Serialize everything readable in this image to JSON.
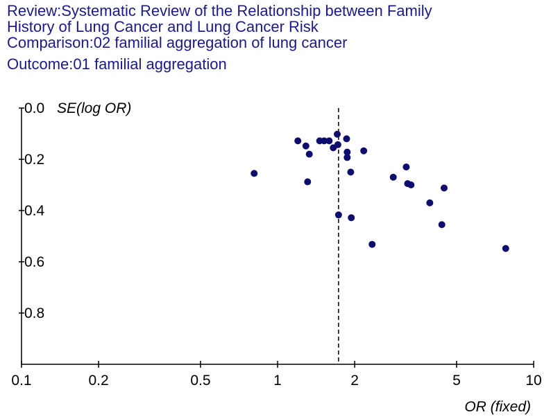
{
  "header": {
    "review_line1": "Review:Systematic Review of the Relationship between Family",
    "review_line2": "History of Lung Cancer and Lung Cancer Risk",
    "comparison": "Comparison:02 familial aggregation of lung cancer",
    "outcome": "Outcome:01 familial aggregation"
  },
  "colors": {
    "header_text": "#1a1a8c",
    "point": "#0d0d6e",
    "axis": "#000000"
  },
  "chart_data": {
    "type": "scatter",
    "title": "",
    "xlabel": "OR (fixed)",
    "ylabel": "SE(log OR)",
    "x_scale": "log",
    "xlim": [
      0.1,
      10
    ],
    "ylim": [
      0.0,
      1.0
    ],
    "y_inverted": true,
    "grid": false,
    "x_ticks": [
      0.1,
      0.2,
      0.5,
      1,
      2,
      5,
      10
    ],
    "x_tick_labels": [
      "0.1",
      "0.2",
      "0.5",
      "1",
      "2",
      "5",
      "10"
    ],
    "y_ticks": [
      0.0,
      0.2,
      0.4,
      0.6,
      0.8
    ],
    "y_tick_labels": [
      "0.0",
      "0.2",
      "0.4",
      "0.6",
      "0.8"
    ],
    "reference_line": {
      "x": 1.73,
      "style": "dashed"
    },
    "series": [
      {
        "points": [
          {
            "x": 0.81,
            "y": 0.255
          },
          {
            "x": 1.2,
            "y": 0.128
          },
          {
            "x": 1.29,
            "y": 0.148
          },
          {
            "x": 1.33,
            "y": 0.18
          },
          {
            "x": 1.31,
            "y": 0.288
          },
          {
            "x": 1.46,
            "y": 0.128
          },
          {
            "x": 1.52,
            "y": 0.128
          },
          {
            "x": 1.59,
            "y": 0.128
          },
          {
            "x": 1.65,
            "y": 0.155
          },
          {
            "x": 1.71,
            "y": 0.102
          },
          {
            "x": 1.72,
            "y": 0.143
          },
          {
            "x": 1.73,
            "y": 0.417
          },
          {
            "x": 1.86,
            "y": 0.12
          },
          {
            "x": 1.87,
            "y": 0.172
          },
          {
            "x": 1.87,
            "y": 0.193
          },
          {
            "x": 1.93,
            "y": 0.25
          },
          {
            "x": 1.94,
            "y": 0.428
          },
          {
            "x": 2.17,
            "y": 0.167
          },
          {
            "x": 2.34,
            "y": 0.532
          },
          {
            "x": 2.83,
            "y": 0.27
          },
          {
            "x": 3.18,
            "y": 0.23
          },
          {
            "x": 3.22,
            "y": 0.295
          },
          {
            "x": 3.32,
            "y": 0.3
          },
          {
            "x": 3.93,
            "y": 0.37
          },
          {
            "x": 4.38,
            "y": 0.455
          },
          {
            "x": 4.47,
            "y": 0.312
          },
          {
            "x": 7.78,
            "y": 0.548
          }
        ]
      }
    ]
  }
}
